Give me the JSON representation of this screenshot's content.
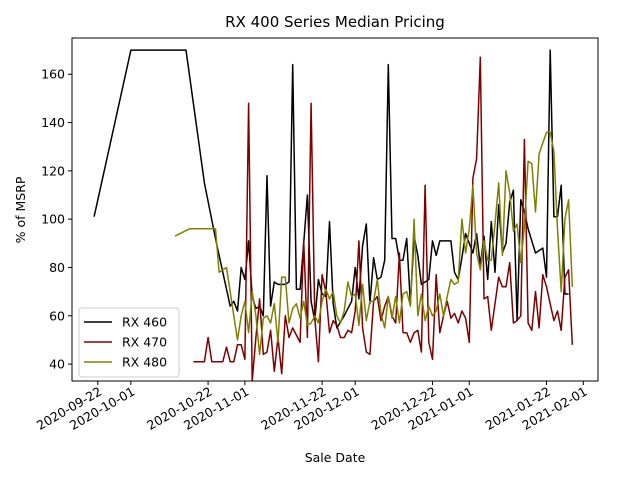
{
  "chart_data": {
    "type": "line",
    "title": "RX 400 Series Median Pricing",
    "xlabel": "Sale Date",
    "ylabel": "% of MSRP",
    "xlim": [
      "2020-09-15",
      "2021-02-05"
    ],
    "ylim": [
      33,
      175
    ],
    "x_ticks": [
      "2020-09-22",
      "2020-10-01",
      "2020-10-22",
      "2020-11-01",
      "2020-11-22",
      "2020-12-01",
      "2020-12-22",
      "2021-01-01",
      "2021-01-22",
      "2021-02-01"
    ],
    "y_ticks": [
      40,
      60,
      80,
      100,
      120,
      140,
      160
    ],
    "grid": false,
    "legend_position": "lower-left",
    "series": [
      {
        "name": "RX 460",
        "color": "#000000",
        "points": [
          [
            "2020-09-21",
            101
          ],
          [
            "2020-10-01",
            170
          ],
          [
            "2020-10-16",
            170
          ],
          [
            "2020-10-21",
            115
          ],
          [
            "2020-10-24",
            92
          ],
          [
            "2020-10-26",
            78
          ],
          [
            "2020-10-28",
            64
          ],
          [
            "2020-10-29",
            66
          ],
          [
            "2020-10-30",
            62
          ],
          [
            "2020-10-31",
            80
          ],
          [
            "2020-11-01",
            75
          ],
          [
            "2020-11-02",
            91
          ],
          [
            "2020-11-03",
            68
          ],
          [
            "2020-11-04",
            63
          ],
          [
            "2020-11-05",
            64
          ],
          [
            "2020-11-06",
            60
          ],
          [
            "2020-11-07",
            118
          ],
          [
            "2020-11-08",
            64
          ],
          [
            "2020-11-09",
            74
          ],
          [
            "2020-11-10",
            73
          ],
          [
            "2020-11-12",
            73
          ],
          [
            "2020-11-13",
            74
          ],
          [
            "2020-11-14",
            164
          ],
          [
            "2020-11-15",
            71
          ],
          [
            "2020-11-16",
            71
          ],
          [
            "2020-11-17",
            90
          ],
          [
            "2020-11-18",
            110
          ],
          [
            "2020-11-19",
            66
          ],
          [
            "2020-11-20",
            58
          ],
          [
            "2020-11-21",
            75
          ],
          [
            "2020-11-22",
            69
          ],
          [
            "2020-11-23",
            68
          ],
          [
            "2020-11-24",
            99
          ],
          [
            "2020-11-25",
            65
          ],
          [
            "2020-11-26",
            55
          ],
          [
            "2020-11-28",
            60
          ],
          [
            "2020-11-30",
            66
          ],
          [
            "2020-12-01",
            80
          ],
          [
            "2020-12-02",
            67
          ],
          [
            "2020-12-03",
            89
          ],
          [
            "2020-12-04",
            98
          ],
          [
            "2020-12-05",
            65
          ],
          [
            "2020-12-06",
            84
          ],
          [
            "2020-12-07",
            75
          ],
          [
            "2020-12-08",
            76
          ],
          [
            "2020-12-09",
            83
          ],
          [
            "2020-12-10",
            164
          ],
          [
            "2020-12-11",
            92
          ],
          [
            "2020-12-12",
            92
          ],
          [
            "2020-12-13",
            83
          ],
          [
            "2020-12-14",
            83
          ],
          [
            "2020-12-15",
            92
          ],
          [
            "2020-12-16",
            65
          ],
          [
            "2020-12-17",
            93
          ],
          [
            "2020-12-18",
            85
          ],
          [
            "2020-12-19",
            73
          ],
          [
            "2020-12-21",
            75
          ],
          [
            "2020-12-22",
            91
          ],
          [
            "2020-12-23",
            85
          ],
          [
            "2020-12-24",
            91
          ],
          [
            "2020-12-27",
            91
          ],
          [
            "2020-12-28",
            78
          ],
          [
            "2020-12-29",
            75
          ],
          [
            "2020-12-30",
            84
          ],
          [
            "2020-12-31",
            94
          ],
          [
            "2021-01-01",
            90
          ],
          [
            "2021-01-02",
            86
          ],
          [
            "2021-01-03",
            94
          ],
          [
            "2021-01-04",
            81
          ],
          [
            "2021-01-05",
            93
          ],
          [
            "2021-01-06",
            75
          ],
          [
            "2021-01-07",
            99
          ],
          [
            "2021-01-08",
            78
          ],
          [
            "2021-01-09",
            106
          ],
          [
            "2021-01-10",
            86
          ],
          [
            "2021-01-11",
            90
          ],
          [
            "2021-01-12",
            107
          ],
          [
            "2021-01-13",
            112
          ],
          [
            "2021-01-14",
            58
          ],
          [
            "2021-01-15",
            108
          ],
          [
            "2021-01-16",
            103
          ],
          [
            "2021-01-17",
            96
          ],
          [
            "2021-01-19",
            86
          ],
          [
            "2021-01-21",
            88
          ],
          [
            "2021-01-22",
            76
          ],
          [
            "2021-01-23",
            170
          ],
          [
            "2021-01-24",
            101
          ],
          [
            "2021-01-25",
            101
          ],
          [
            "2021-01-26",
            114
          ],
          [
            "2021-01-27",
            69
          ],
          [
            "2021-01-28",
            69
          ]
        ]
      },
      {
        "name": "RX 470",
        "color": "#800000",
        "points": [
          [
            "2020-10-18",
            41
          ],
          [
            "2020-10-21",
            41
          ],
          [
            "2020-10-22",
            51
          ],
          [
            "2020-10-23",
            41
          ],
          [
            "2020-10-26",
            41
          ],
          [
            "2020-10-27",
            47
          ],
          [
            "2020-10-28",
            41
          ],
          [
            "2020-10-29",
            41
          ],
          [
            "2020-10-30",
            48
          ],
          [
            "2020-10-31",
            48
          ],
          [
            "2020-11-01",
            42
          ],
          [
            "2020-11-02",
            148
          ],
          [
            "2020-11-03",
            33
          ],
          [
            "2020-11-04",
            51
          ],
          [
            "2020-11-05",
            67
          ],
          [
            "2020-11-06",
            44
          ],
          [
            "2020-11-07",
            45
          ],
          [
            "2020-11-08",
            54
          ],
          [
            "2020-11-09",
            37
          ],
          [
            "2020-11-10",
            51
          ],
          [
            "2020-11-11",
            36
          ],
          [
            "2020-11-12",
            60
          ],
          [
            "2020-11-13",
            51
          ],
          [
            "2020-11-14",
            55
          ],
          [
            "2020-11-15",
            52
          ],
          [
            "2020-11-16",
            49
          ],
          [
            "2020-11-17",
            91
          ],
          [
            "2020-11-18",
            51
          ],
          [
            "2020-11-19",
            148
          ],
          [
            "2020-11-20",
            59
          ],
          [
            "2020-11-21",
            41
          ],
          [
            "2020-11-22",
            77
          ],
          [
            "2020-11-23",
            70
          ],
          [
            "2020-11-24",
            53
          ],
          [
            "2020-11-25",
            58
          ],
          [
            "2020-11-26",
            56
          ],
          [
            "2020-11-27",
            51
          ],
          [
            "2020-11-28",
            51
          ],
          [
            "2020-11-29",
            54
          ],
          [
            "2020-11-30",
            53
          ],
          [
            "2020-12-01",
            62
          ],
          [
            "2020-12-02",
            91
          ],
          [
            "2020-12-03",
            55
          ],
          [
            "2020-12-04",
            45
          ],
          [
            "2020-12-05",
            44
          ],
          [
            "2020-12-06",
            66
          ],
          [
            "2020-12-07",
            68
          ],
          [
            "2020-12-08",
            58
          ],
          [
            "2020-12-09",
            64
          ],
          [
            "2020-12-10",
            68
          ],
          [
            "2020-12-11",
            60
          ],
          [
            "2020-12-12",
            57
          ],
          [
            "2020-12-13",
            86
          ],
          [
            "2020-12-14",
            53
          ],
          [
            "2020-12-15",
            53
          ],
          [
            "2020-12-16",
            49
          ],
          [
            "2020-12-17",
            53
          ],
          [
            "2020-12-18",
            54
          ],
          [
            "2020-12-19",
            45
          ],
          [
            "2020-12-20",
            114
          ],
          [
            "2020-12-21",
            49
          ],
          [
            "2020-12-22",
            42
          ],
          [
            "2020-12-23",
            77
          ],
          [
            "2020-12-24",
            53
          ],
          [
            "2020-12-25",
            60
          ],
          [
            "2020-12-26",
            66
          ],
          [
            "2020-12-27",
            59
          ],
          [
            "2020-12-28",
            61
          ],
          [
            "2020-12-29",
            57
          ],
          [
            "2020-12-30",
            62
          ],
          [
            "2020-12-31",
            59
          ],
          [
            "2021-01-01",
            49
          ],
          [
            "2021-01-02",
            117
          ],
          [
            "2021-01-03",
            125
          ],
          [
            "2021-01-04",
            167
          ],
          [
            "2021-01-05",
            67
          ],
          [
            "2021-01-06",
            68
          ],
          [
            "2021-01-07",
            54
          ],
          [
            "2021-01-08",
            65
          ],
          [
            "2021-01-09",
            76
          ],
          [
            "2021-01-10",
            72
          ],
          [
            "2021-01-11",
            72
          ],
          [
            "2021-01-12",
            82
          ],
          [
            "2021-01-13",
            57
          ],
          [
            "2021-01-14",
            58
          ],
          [
            "2021-01-15",
            60
          ],
          [
            "2021-01-16",
            133
          ],
          [
            "2021-01-17",
            57
          ],
          [
            "2021-01-18",
            54
          ],
          [
            "2021-01-19",
            70
          ],
          [
            "2021-01-20",
            55
          ],
          [
            "2021-01-21",
            77
          ],
          [
            "2021-01-22",
            72
          ],
          [
            "2021-01-24",
            58
          ],
          [
            "2021-01-25",
            62
          ],
          [
            "2021-01-26",
            54
          ],
          [
            "2021-01-27",
            76
          ],
          [
            "2021-01-28",
            79
          ],
          [
            "2021-01-29",
            48
          ]
        ]
      },
      {
        "name": "RX 480",
        "color": "#808000",
        "points": [
          [
            "2020-10-13",
            93
          ],
          [
            "2020-10-17",
            96
          ],
          [
            "2020-10-24",
            96
          ],
          [
            "2020-10-25",
            78
          ],
          [
            "2020-10-27",
            80
          ],
          [
            "2020-10-29",
            60
          ],
          [
            "2020-10-30",
            50
          ],
          [
            "2020-10-31",
            60
          ],
          [
            "2020-11-01",
            66
          ],
          [
            "2020-11-02",
            53
          ],
          [
            "2020-11-03",
            70
          ],
          [
            "2020-11-04",
            60
          ],
          [
            "2020-11-05",
            44
          ],
          [
            "2020-11-06",
            59
          ],
          [
            "2020-11-07",
            60
          ],
          [
            "2020-11-08",
            57
          ],
          [
            "2020-11-09",
            65
          ],
          [
            "2020-11-10",
            49
          ],
          [
            "2020-11-11",
            76
          ],
          [
            "2020-11-12",
            76
          ],
          [
            "2020-11-13",
            57
          ],
          [
            "2020-11-14",
            63
          ],
          [
            "2020-11-15",
            65
          ],
          [
            "2020-11-16",
            59
          ],
          [
            "2020-11-17",
            66
          ],
          [
            "2020-11-18",
            56
          ],
          [
            "2020-11-19",
            57
          ],
          [
            "2020-11-20",
            60
          ],
          [
            "2020-11-21",
            57
          ],
          [
            "2020-11-22",
            66
          ],
          [
            "2020-11-23",
            71
          ],
          [
            "2020-11-24",
            67
          ],
          [
            "2020-11-25",
            70
          ],
          [
            "2020-11-26",
            60
          ],
          [
            "2020-11-27",
            57
          ],
          [
            "2020-11-28",
            62
          ],
          [
            "2020-11-29",
            74
          ],
          [
            "2020-11-30",
            68
          ],
          [
            "2020-12-01",
            69
          ],
          [
            "2020-12-02",
            56
          ],
          [
            "2020-12-03",
            73
          ],
          [
            "2020-12-04",
            58
          ],
          [
            "2020-12-05",
            66
          ],
          [
            "2020-12-06",
            66
          ],
          [
            "2020-12-07",
            75
          ],
          [
            "2020-12-08",
            61
          ],
          [
            "2020-12-09",
            55
          ],
          [
            "2020-12-10",
            68
          ],
          [
            "2020-12-11",
            59
          ],
          [
            "2020-12-12",
            68
          ],
          [
            "2020-12-13",
            57
          ],
          [
            "2020-12-14",
            69
          ],
          [
            "2020-12-15",
            70
          ],
          [
            "2020-12-16",
            64
          ],
          [
            "2020-12-17",
            100
          ],
          [
            "2020-12-18",
            60
          ],
          [
            "2020-12-19",
            69
          ],
          [
            "2020-12-20",
            58
          ],
          [
            "2020-12-21",
            64
          ],
          [
            "2020-12-22",
            60
          ],
          [
            "2020-12-23",
            62
          ],
          [
            "2020-12-24",
            69
          ],
          [
            "2020-12-25",
            60
          ],
          [
            "2020-12-26",
            68
          ],
          [
            "2020-12-27",
            75
          ],
          [
            "2020-12-28",
            73
          ],
          [
            "2020-12-29",
            74
          ],
          [
            "2020-12-30",
            100
          ],
          [
            "2020-12-31",
            86
          ],
          [
            "2021-01-01",
            96
          ],
          [
            "2021-01-02",
            114
          ],
          [
            "2021-01-03",
            86
          ],
          [
            "2021-01-04",
            79
          ],
          [
            "2021-01-05",
            91
          ],
          [
            "2021-01-06",
            83
          ],
          [
            "2021-01-07",
            83
          ],
          [
            "2021-01-08",
            98
          ],
          [
            "2021-01-09",
            115
          ],
          [
            "2021-01-10",
            85
          ],
          [
            "2021-01-11",
            120
          ],
          [
            "2021-01-12",
            111
          ],
          [
            "2021-01-13",
            95
          ],
          [
            "2021-01-14",
            98
          ],
          [
            "2021-01-15",
            82
          ],
          [
            "2021-01-16",
            97
          ],
          [
            "2021-01-17",
            124
          ],
          [
            "2021-01-18",
            123
          ],
          [
            "2021-01-19",
            103
          ],
          [
            "2021-01-20",
            127
          ],
          [
            "2021-01-22",
            136
          ],
          [
            "2021-01-23",
            136
          ],
          [
            "2021-01-24",
            128
          ],
          [
            "2021-01-25",
            96
          ],
          [
            "2021-01-26",
            70
          ],
          [
            "2021-01-27",
            100
          ],
          [
            "2021-01-28",
            108
          ],
          [
            "2021-01-29",
            72
          ]
        ]
      }
    ]
  }
}
